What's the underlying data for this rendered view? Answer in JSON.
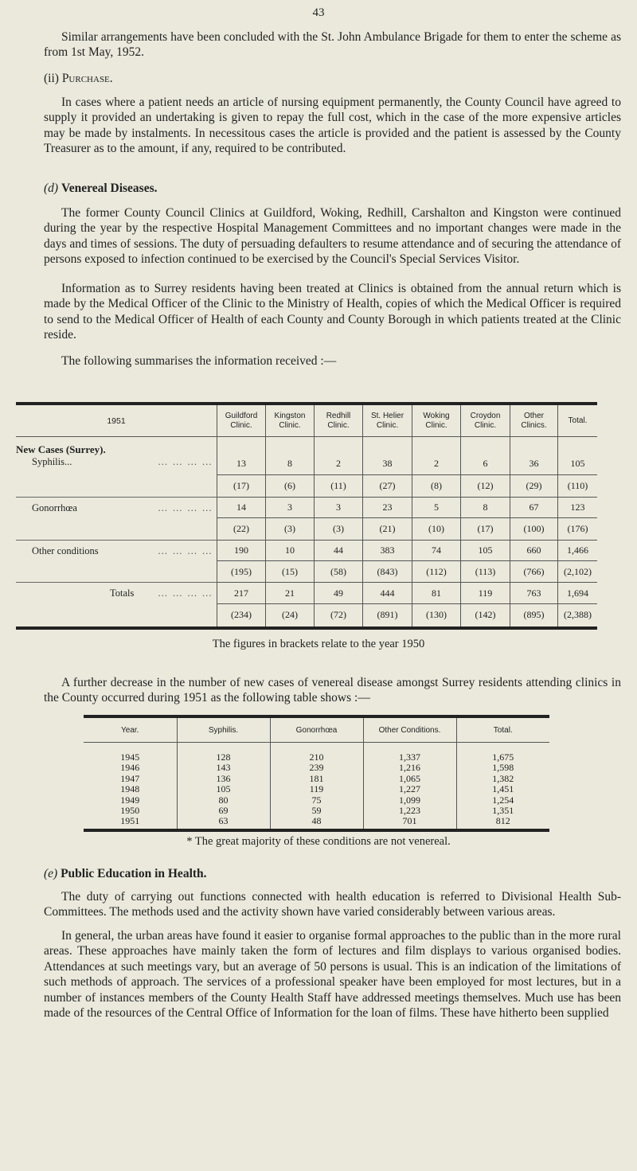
{
  "page_number": "43",
  "para_intro": "Similar arrangements have been concluded with the St. John Ambulance Brigade for them to enter the scheme as from 1st May, 1952.",
  "purchase": {
    "heading_num": "(ii)",
    "heading": "Purchase.",
    "text": "In cases where a patient needs an article of nursing equipment permanently, the County Council have agreed to supply it provided an undertaking is given to repay the full cost, which in the case of the more expensive articles may be made by instalments. In necessitous cases the article is provided and the patient is assessed by the County Treasurer as to the amount, if any, required to be contributed."
  },
  "venereal": {
    "heading_letter": "(d)",
    "heading": "Venereal Diseases.",
    "para1": "The former County Council Clinics at Guildford, Woking, Redhill, Carshalton and Kingston were continued during the year by the respective Hospital Management Committees and no important changes were made in the days and times of sessions. The duty of persuading defaulters to resume attendance and of securing the attendance of persons exposed to infection continued to be exercised by the Council's Special Services Visitor.",
    "para2": "Information as to Surrey residents having been treated at Clinics is obtained from the annual return which is made by the Medical Officer of the Clinic to the Ministry of Health, copies of which the Medical Officer is required to send to the Medical Officer of Health of each County and County Borough in which patients treated at the Clinic reside.",
    "para3": "The following summarises the information received :—"
  },
  "table1": {
    "corner": "1951",
    "columns": [
      "Guildford Clinic.",
      "Kingston Clinic.",
      "Redhill Clinic.",
      "St. Helier Clinic.",
      "Woking Clinic.",
      "Croydon Clinic.",
      "Other Clinics.",
      "Total."
    ],
    "group_label": "New Cases (Surrey).",
    "rows": [
      {
        "label": "Syphilis...",
        "values": [
          "13",
          "8",
          "2",
          "38",
          "2",
          "6",
          "36",
          "105"
        ],
        "prev": [
          "(17)",
          "(6)",
          "(11)",
          "(27)",
          "(8)",
          "(12)",
          "(29)",
          "(110)"
        ]
      },
      {
        "label": "Gonorrhœa",
        "values": [
          "14",
          "3",
          "3",
          "23",
          "5",
          "8",
          "67",
          "123"
        ],
        "prev": [
          "(22)",
          "(3)",
          "(3)",
          "(21)",
          "(10)",
          "(17)",
          "(100)",
          "(176)"
        ]
      },
      {
        "label": "Other conditions",
        "values": [
          "190",
          "10",
          "44",
          "383",
          "74",
          "105",
          "660",
          "1,466"
        ],
        "prev": [
          "(195)",
          "(15)",
          "(58)",
          "(843)",
          "(112)",
          "(113)",
          "(766)",
          "(2,102)"
        ]
      },
      {
        "label": "Totals",
        "values": [
          "217",
          "21",
          "49",
          "444",
          "81",
          "119",
          "763",
          "1,694"
        ],
        "prev": [
          "(234)",
          "(24)",
          "(72)",
          "(891)",
          "(130)",
          "(142)",
          "(895)",
          "(2,388)"
        ]
      }
    ],
    "caption": "The figures in brackets relate to the year 1950"
  },
  "para_decrease": "A further decrease in the number of new cases of venereal disease amongst Surrey residents attending clinics in the County occurred during 1951 as the following table shows :—",
  "table2": {
    "columns": [
      "Year.",
      "Syphilis.",
      "Gonorrhœa",
      "Other Conditions.",
      "Total."
    ],
    "rows": [
      [
        "1945",
        "128",
        "210",
        "1,337",
        "1,675"
      ],
      [
        "1946",
        "143",
        "239",
        "1,216",
        "1,598"
      ],
      [
        "1947",
        "136",
        "181",
        "1,065",
        "1,382"
      ],
      [
        "1948",
        "105",
        "119",
        "1,227",
        "1,451"
      ],
      [
        "1949",
        "80",
        "75",
        "1,099",
        "1,254"
      ],
      [
        "1950",
        "69",
        "59",
        "1,223",
        "1,351"
      ],
      [
        "1951",
        "63",
        "48",
        "701",
        "812"
      ]
    ],
    "footnote": "* The great majority of these conditions are not venereal."
  },
  "public_education": {
    "heading_letter": "(e)",
    "heading": "Public Education in Health.",
    "para1": "The duty of carrying out functions connected with health education is referred to Divisional Health Sub-Committees. The methods used and the activity shown have varied considerably between various areas.",
    "para2": "In general, the urban areas have found it easier to organise formal approaches to the public than in the more rural areas. These approaches have mainly taken the form of lectures and film displays to various organised bodies. Attendances at such meetings vary, but an average of 50 persons is usual. This is an indication of the limitations of such methods of approach. The services of a professional speaker have been employed for most lectures, but in a number of instances members of the County Health Staff have addressed meetings themselves. Much use has been made of the resources of the Central Office of Information for the loan of films. These have hitherto been supplied"
  }
}
